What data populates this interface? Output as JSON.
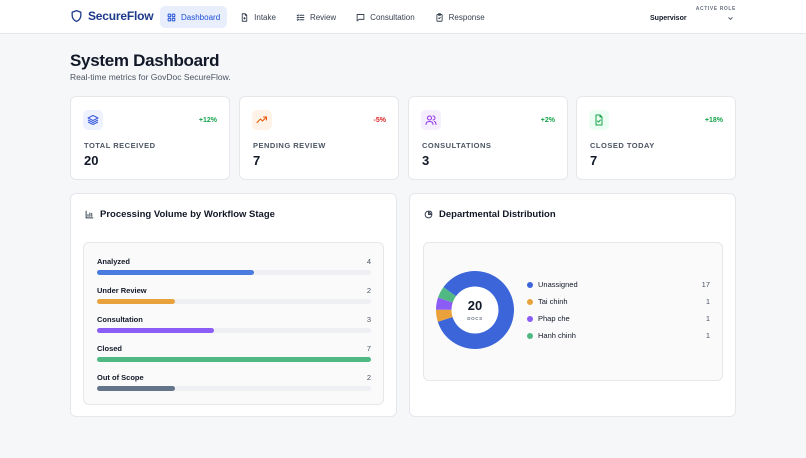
{
  "brand": {
    "name": "SecureFlow"
  },
  "nav": [
    {
      "label": "Dashboard"
    },
    {
      "label": "Intake"
    },
    {
      "label": "Review"
    },
    {
      "label": "Consultation"
    },
    {
      "label": "Response"
    }
  ],
  "role": {
    "label": "ACTIVE ROLE",
    "value": "Supervisor"
  },
  "page": {
    "title": "System Dashboard",
    "subtitle": "Real-time metrics for GovDoc SecureFlow."
  },
  "stats": [
    {
      "label": "TOTAL RECEIVED",
      "value": "20",
      "delta": "+12%",
      "icon": "layers-icon",
      "color": "#3b5bdb",
      "deltaColor": "#16a34a"
    },
    {
      "label": "PENDING REVIEW",
      "value": "7",
      "delta": "-5%",
      "icon": "trending-up-icon",
      "color": "#ea580c",
      "deltaColor": "#dc2626"
    },
    {
      "label": "CONSULTATIONS",
      "value": "3",
      "delta": "+2%",
      "icon": "users-icon",
      "color": "#9333ea",
      "deltaColor": "#16a34a"
    },
    {
      "label": "CLOSED TODAY",
      "value": "7",
      "delta": "+18%",
      "icon": "file-check-icon",
      "color": "#16a34a",
      "deltaColor": "#16a34a"
    }
  ],
  "volume": {
    "title": "Processing Volume by Workflow Stage",
    "max": 7,
    "stages": [
      {
        "label": "Analyzed",
        "count": 4,
        "color": "#4a7cdf"
      },
      {
        "label": "Under Review",
        "count": 2,
        "color": "#e9a23b"
      },
      {
        "label": "Consultation",
        "count": 3,
        "color": "#8b5cf6"
      },
      {
        "label": "Closed",
        "count": 7,
        "color": "#4fb883"
      },
      {
        "label": "Out of Scope",
        "count": 2,
        "color": "#64748b"
      }
    ]
  },
  "distribution": {
    "title": "Departmental Distribution",
    "total": "20",
    "unit": "DOCS",
    "items": [
      {
        "name": "Unassigned",
        "count": 17,
        "color": "#3b65d9"
      },
      {
        "name": "Tai chinh",
        "count": 1,
        "color": "#e9a23b"
      },
      {
        "name": "Phap che",
        "count": 1,
        "color": "#8b5cf6"
      },
      {
        "name": "Hanh chinh",
        "count": 1,
        "color": "#4fb883"
      }
    ]
  }
}
